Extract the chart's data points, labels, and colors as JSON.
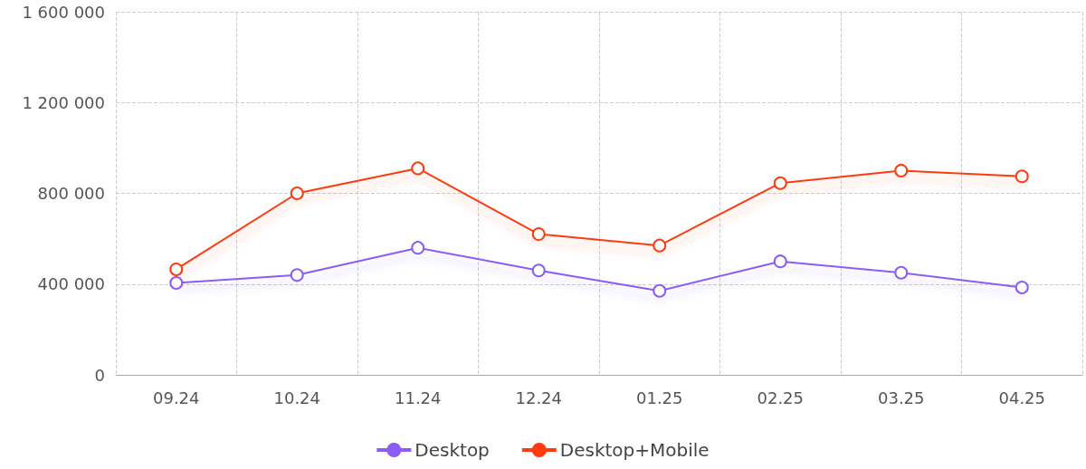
{
  "chart_data": {
    "type": "line",
    "categories": [
      "09.24",
      "10.24",
      "11.24",
      "12.24",
      "01.25",
      "02.25",
      "03.25",
      "04.25"
    ],
    "series": [
      {
        "name": "Desktop",
        "color": "#8b5cf6",
        "values": [
          405000,
          440000,
          560000,
          460000,
          370000,
          500000,
          450000,
          385000
        ]
      },
      {
        "name": "Desktop+Mobile",
        "color": "#ff3b0f",
        "values": [
          465000,
          800000,
          910000,
          620000,
          570000,
          845000,
          900000,
          875000
        ]
      }
    ],
    "ylim": [
      0,
      1600000
    ],
    "yticks": [
      0,
      {
        "value": 400000,
        "label": "400 000"
      },
      {
        "value": 800000,
        "label": "800 000"
      },
      {
        "value": 1200000,
        "label": "1 200 000"
      },
      {
        "value": 1600000,
        "label": "1 600 000"
      }
    ],
    "grid": true,
    "legend": "bottom",
    "marker": "circle",
    "line_style": "solid"
  }
}
